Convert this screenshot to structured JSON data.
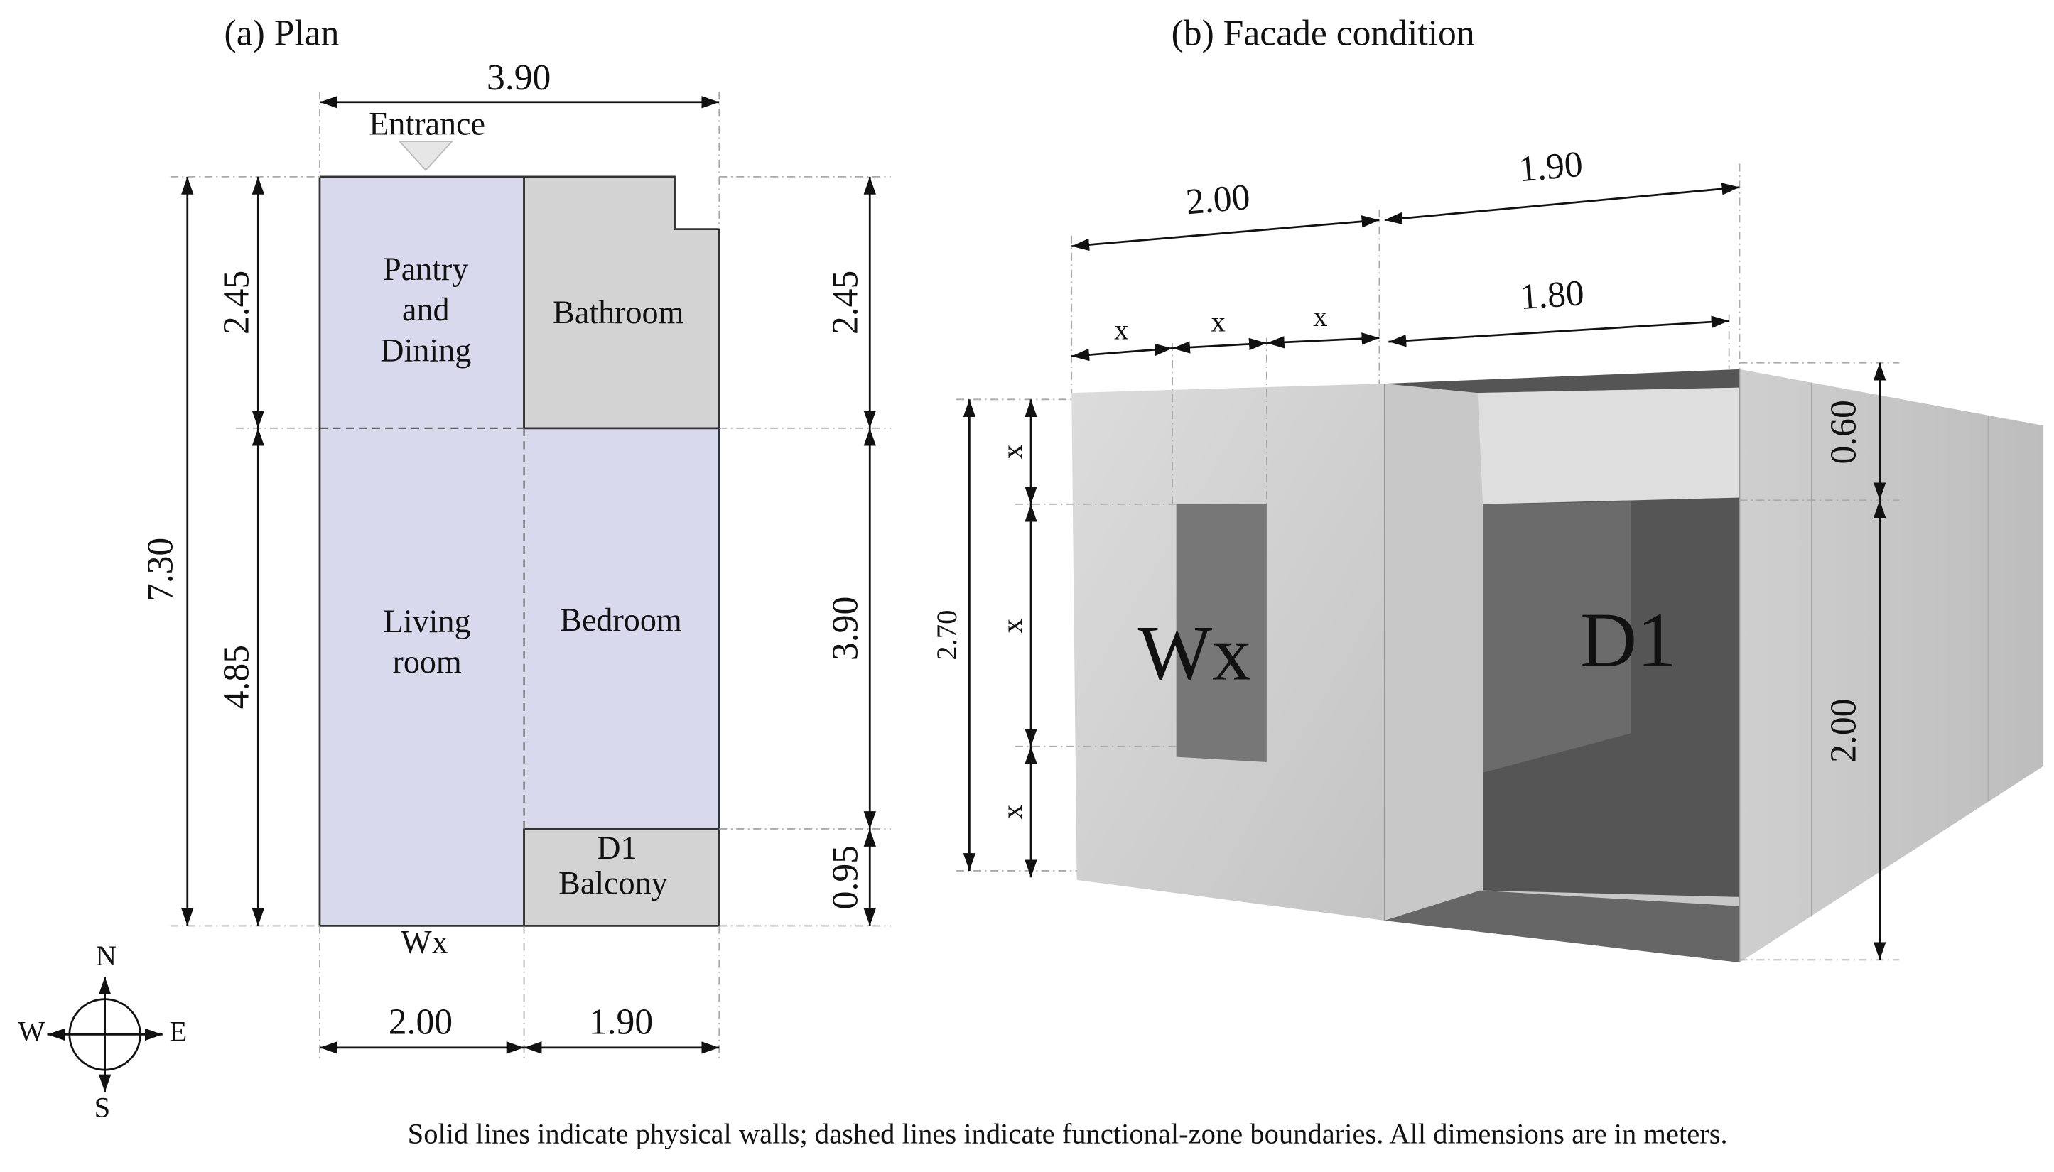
{
  "plan": {
    "title": "(a) Plan",
    "entrance": "Entrance",
    "rooms": [
      {
        "lines": [
          "Pantry",
          "and",
          "Dining"
        ]
      },
      {
        "lines": [
          "Bathroom"
        ]
      },
      {
        "lines": [
          "Living",
          "room"
        ]
      },
      {
        "lines": [
          "Bedroom"
        ]
      },
      {
        "lines": [
          "D1",
          "Balcony"
        ]
      }
    ],
    "window": "Wx",
    "dims": {
      "top": "3.90",
      "left_total": "7.30",
      "left": [
        "2.45",
        "4.85"
      ],
      "right": [
        "2.45",
        "3.90",
        "0.95"
      ],
      "bottom": [
        "2.00",
        "1.90"
      ]
    }
  },
  "compass": {
    "n": "N",
    "w": "W",
    "e": "E",
    "s": "S"
  },
  "facade": {
    "title": "(b) Facade condition",
    "dims": {
      "top": [
        "2.00",
        "1.90"
      ],
      "window": [
        "x",
        "x",
        "x"
      ],
      "door_width": "1.80",
      "height": "2.70",
      "left": [
        "x",
        "x",
        "x"
      ],
      "right": [
        "0.60",
        "2.00"
      ]
    },
    "window_label": "Wx",
    "door_label": "D1"
  },
  "caption": "Solid lines indicate physical walls; dashed lines indicate functional-zone boundaries. All dimensions are in meters."
}
